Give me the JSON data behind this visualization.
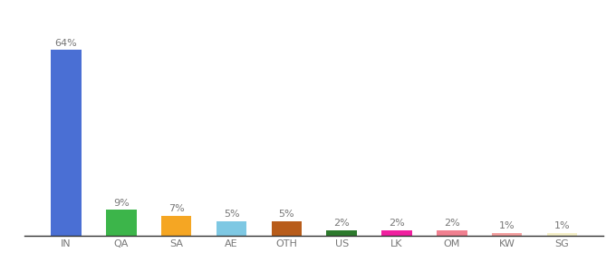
{
  "categories": [
    "IN",
    "QA",
    "SA",
    "AE",
    "OTH",
    "US",
    "LK",
    "OM",
    "KW",
    "SG"
  ],
  "values": [
    64,
    9,
    7,
    5,
    5,
    2,
    2,
    2,
    1,
    1
  ],
  "labels": [
    "64%",
    "9%",
    "7%",
    "5%",
    "5%",
    "2%",
    "2%",
    "2%",
    "1%",
    "1%"
  ],
  "bar_colors": [
    "#4a6fd4",
    "#3cb54a",
    "#f5a623",
    "#7ec8e3",
    "#b85c1a",
    "#2d7a2d",
    "#f020a0",
    "#f08090",
    "#f4a0a0",
    "#f5f0c8"
  ],
  "background_color": "#ffffff",
  "ylim": [
    0,
    70
  ],
  "label_fontsize": 8,
  "tick_fontsize": 8,
  "bar_width": 0.55
}
